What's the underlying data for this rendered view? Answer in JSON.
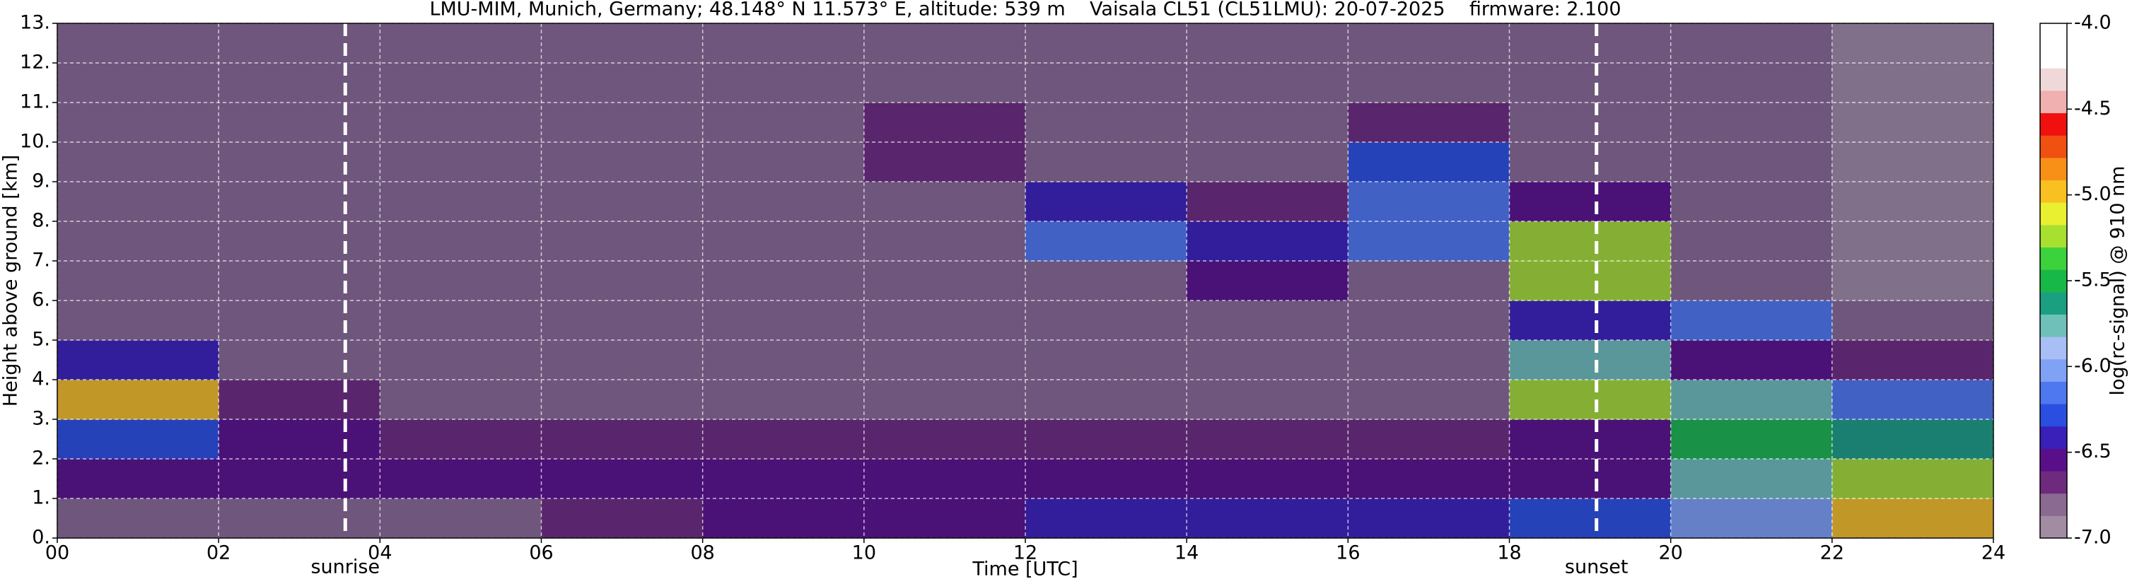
{
  "chart_data": {
    "type": "heatmap",
    "title": "LMU-MIM, Munich, Germany; 48.148° N 11.573° E, altitude: 539 m    Vaisala CL51 (CL51LMU): 20-07-2025    firmware: 2.100",
    "x_label": "Time [UTC]",
    "y_label": "Height above ground [km]",
    "colorbar_label": "log(rc-signal) @ 910 nm",
    "xlim": [
      0,
      24
    ],
    "xticks": [
      {
        "value": 0,
        "label": "00"
      },
      {
        "value": 2,
        "label": "02"
      },
      {
        "value": 4,
        "label": "04"
      },
      {
        "value": 6,
        "label": "06"
      },
      {
        "value": 8,
        "label": "08"
      },
      10,
      12,
      14,
      16,
      18,
      20,
      22,
      24
    ],
    "ylim": [
      0,
      13
    ],
    "yticks": [
      {
        "value": 0,
        "label": "0."
      },
      {
        "value": 1,
        "label": "1."
      },
      {
        "value": 2,
        "label": "2."
      },
      {
        "value": 3,
        "label": "3."
      },
      {
        "value": 4,
        "label": "4."
      },
      {
        "value": 5,
        "label": "5."
      },
      {
        "value": 6,
        "label": "6."
      },
      {
        "value": 7,
        "label": "7."
      },
      {
        "value": 8,
        "label": "8."
      },
      {
        "value": 9,
        "label": "9."
      },
      {
        "value": 10,
        "label": "10."
      },
      {
        "value": 11,
        "label": "11."
      },
      {
        "value": 12,
        "label": "12."
      },
      {
        "value": 13,
        "label": "13."
      }
    ],
    "grid": true,
    "x_bins": [
      0,
      2,
      4,
      6,
      8,
      10,
      12,
      14,
      16,
      18,
      20,
      22,
      24
    ],
    "y_bins": [
      0,
      1,
      2,
      3,
      4,
      5,
      6,
      7,
      8,
      9,
      10,
      11,
      12,
      13
    ],
    "z": [
      [
        -6.8,
        -6.8,
        -6.8,
        -6.7,
        -6.6,
        -6.5,
        -6.4,
        -6.4,
        -6.4,
        -6.3,
        -6.0,
        -5.0
      ],
      [
        -6.6,
        -6.6,
        -6.6,
        -6.6,
        -6.6,
        -6.6,
        -6.6,
        -6.6,
        -6.6,
        -6.5,
        -5.8,
        -5.2
      ],
      [
        -6.3,
        -6.5,
        -6.7,
        -6.7,
        -6.7,
        -6.7,
        -6.7,
        -6.7,
        -6.7,
        -6.6,
        -5.5,
        -5.6
      ],
      [
        -5.0,
        -6.7,
        -6.8,
        -6.8,
        -6.8,
        -6.8,
        -6.8,
        -6.8,
        -6.8,
        -5.3,
        -5.8,
        -6.2
      ],
      [
        -6.4,
        -6.8,
        -6.8,
        -6.8,
        -6.8,
        -6.8,
        -6.8,
        -6.8,
        -6.8,
        -5.8,
        -6.6,
        -6.7
      ],
      [
        -6.8,
        -6.8,
        -6.8,
        -6.8,
        -6.8,
        -6.8,
        -6.8,
        -6.8,
        -6.8,
        -6.4,
        -6.2,
        -6.8
      ],
      [
        -6.8,
        -6.8,
        -6.8,
        -6.8,
        -6.8,
        -6.8,
        -6.8,
        -6.6,
        -6.8,
        -5.2,
        -6.8,
        -6.9
      ],
      [
        -6.85,
        -6.85,
        -6.85,
        -6.85,
        -6.85,
        -6.85,
        -6.2,
        -6.4,
        -6.2,
        -5.2,
        -6.85,
        -6.95
      ],
      [
        -6.85,
        -6.85,
        -6.85,
        -6.85,
        -6.85,
        -6.85,
        -6.4,
        -6.7,
        -6.2,
        -6.6,
        -6.85,
        -6.95
      ],
      [
        -6.85,
        -6.85,
        -6.85,
        -6.85,
        -6.85,
        -6.7,
        -6.85,
        -6.85,
        -6.3,
        -6.85,
        -6.85,
        -6.95
      ],
      [
        -6.85,
        -6.85,
        -6.85,
        -6.85,
        -6.85,
        -6.7,
        -6.85,
        -6.85,
        -6.7,
        -6.85,
        -6.85,
        -6.95
      ],
      [
        -6.85,
        -6.85,
        -6.8,
        -6.85,
        -6.85,
        -6.8,
        -6.85,
        -6.8,
        -6.85,
        -6.85,
        -6.85,
        -6.95
      ],
      [
        -6.85,
        -6.85,
        -6.85,
        -6.85,
        -6.85,
        -6.85,
        -6.85,
        -6.85,
        -6.85,
        -6.85,
        -6.85,
        -6.95
      ]
    ],
    "zlim": [
      -7,
      -4
    ],
    "zticks": [
      {
        "value": -7,
        "label": "-7.0"
      },
      -6.5,
      {
        "value": -6,
        "label": "-6.0"
      },
      -5.5,
      {
        "value": -5,
        "label": "-5.0"
      },
      -4.5,
      {
        "value": -4,
        "label": "-4.0"
      }
    ],
    "colors": [
      "#a28ca3",
      "#8a6a90",
      "#6e2a7c",
      "#5a0f8a",
      "#3a1fb8",
      "#2a4fe0",
      "#4d78f0",
      "#7fa2f5",
      "#a8bff5",
      "#6fc0b8",
      "#1aa080",
      "#18b848",
      "#3cd23c",
      "#a8e030",
      "#e8f030",
      "#f8c020",
      "#f89018",
      "#f05010",
      "#f01010",
      "#f0b0b0",
      "#f0d8d8",
      "#ffffff",
      "#ffffff"
    ],
    "annotations": [
      {
        "text": "sunrise",
        "x": 3.57
      },
      {
        "text": "sunset",
        "x": 19.08
      }
    ]
  }
}
